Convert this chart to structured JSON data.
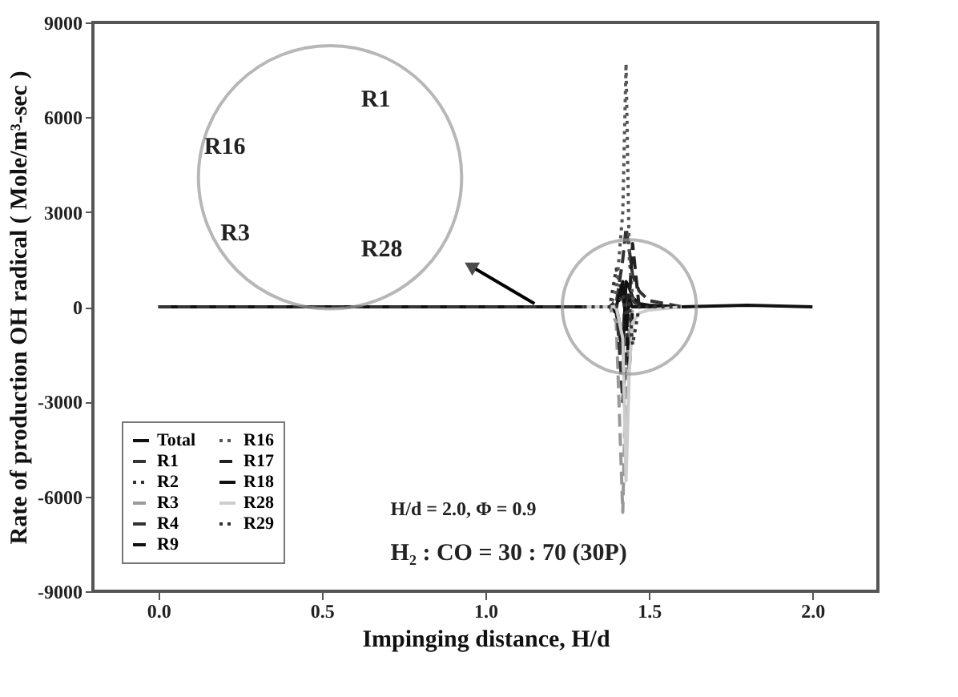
{
  "chart_data": {
    "type": "line",
    "xlabel": "Impinging distance, H/d",
    "ylabel": "Rate of production OH radical ( Mole/m³-sec )",
    "x": [
      1.3,
      1.38,
      1.4,
      1.42,
      1.43,
      1.44,
      1.45,
      1.47,
      1.5,
      1.6
    ],
    "series": [
      {
        "name": "Total",
        "color": "#111111",
        "line_style": "solid",
        "x": [
          0,
          0.5,
          1.0,
          1.38,
          1.4,
          1.42,
          1.43,
          1.44,
          1.45,
          1.47,
          1.5,
          1.6,
          1.8,
          2.0
        ],
        "values": [
          0,
          0,
          0,
          0,
          -200,
          -1500,
          800,
          600,
          300,
          100,
          50,
          0,
          50,
          0
        ]
      },
      {
        "name": "R1",
        "color": "#333333",
        "line_style": "dashed",
        "x": [
          0,
          0.5,
          1.0,
          1.38,
          1.4,
          1.42,
          1.43,
          1.44,
          1.45,
          1.47,
          1.5,
          1.6
        ],
        "values": [
          0,
          0,
          0,
          0,
          100,
          1500,
          2500,
          1800,
          1000,
          500,
          200,
          0
        ]
      },
      {
        "name": "R2",
        "color": "#333333",
        "line_style": "dotted",
        "values": [
          0,
          0,
          1200,
          300,
          -300,
          100,
          0,
          0,
          0,
          0
        ]
      },
      {
        "name": "R3",
        "color": "#999999",
        "line_style": "dashed",
        "values": [
          0,
          0,
          -500,
          -6500,
          -2000,
          -500,
          -100,
          0,
          0,
          0
        ]
      },
      {
        "name": "R4",
        "color": "#333333",
        "line_style": "dashed",
        "values": [
          0,
          0,
          200,
          -3000,
          -1500,
          500,
          200,
          0,
          0,
          0
        ]
      },
      {
        "name": "R9",
        "color": "#111111",
        "line_style": "dashed",
        "values": [
          0,
          0,
          0,
          500,
          -400,
          -2000,
          0,
          0,
          0,
          0
        ]
      },
      {
        "name": "R16",
        "color": "#555555",
        "line_style": "dotted",
        "values": [
          0,
          0,
          500,
          3000,
          7700,
          1500,
          300,
          0,
          0,
          0
        ]
      },
      {
        "name": "R17",
        "color": "#222222",
        "line_style": "dashed",
        "values": [
          0,
          0,
          0,
          -1000,
          500,
          200,
          2000,
          0,
          0,
          0
        ]
      },
      {
        "name": "R18",
        "color": "#111111",
        "line_style": "solid",
        "values": [
          0,
          0,
          0,
          800,
          -600,
          200,
          0,
          0,
          0,
          0
        ]
      },
      {
        "name": "R28",
        "color": "#cccccc",
        "line_style": "solid",
        "values": [
          0,
          0,
          0,
          -1000,
          -5500,
          -2000,
          -500,
          -200,
          -100,
          0
        ]
      },
      {
        "name": "R29",
        "color": "#333333",
        "line_style": "dotted",
        "values": [
          0,
          0,
          0,
          400,
          -300,
          100,
          -1200,
          0,
          0,
          0
        ]
      }
    ],
    "xlim": [
      -0.2,
      2.2
    ],
    "xticks": [
      {
        "value": 0,
        "label": "0.0"
      },
      0.5,
      {
        "value": 1,
        "label": "1.0"
      },
      1.5,
      {
        "value": 2,
        "label": "2.0"
      }
    ],
    "ylim": [
      -9000,
      9000
    ],
    "yticks": [
      -9000,
      -6000,
      -3000,
      0,
      3000,
      6000,
      9000
    ],
    "grid": false,
    "legend": "bottom left",
    "annotations": [
      "R16",
      "R1",
      "R3",
      "R28",
      "H/d = 2.0, Φ = 0.9",
      "H₂ : CO = 30 : 70 (30P)"
    ]
  }
}
